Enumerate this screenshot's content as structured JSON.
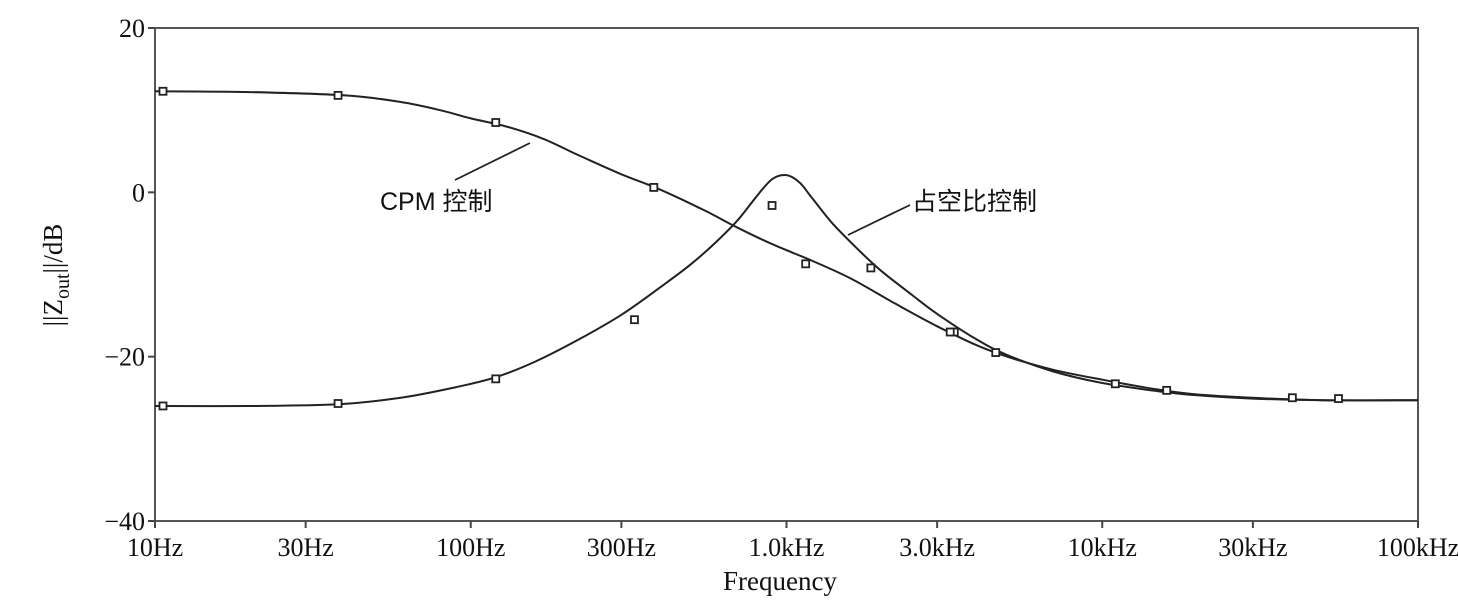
{
  "chart_data": {
    "type": "line",
    "title": "",
    "xlabel": "Frequency",
    "ylabel": "||Z_out||/dB",
    "ylabel_parts": {
      "pre": "||Z",
      "sub": "out",
      "post": "||/dB"
    },
    "x_scale": "log",
    "xlim": [
      10,
      100000
    ],
    "ylim": [
      -40,
      20
    ],
    "grid": false,
    "legend": "none",
    "x_ticks": [
      {
        "value": 10,
        "label": "10Hz"
      },
      {
        "value": 30,
        "label": "30Hz"
      },
      {
        "value": 100,
        "label": "100Hz"
      },
      {
        "value": 300,
        "label": "300Hz"
      },
      {
        "value": 1000,
        "label": "1.0kHz"
      },
      {
        "value": 3000,
        "label": "3.0kHz"
      },
      {
        "value": 10000,
        "label": "10kHz"
      },
      {
        "value": 30000,
        "label": "30kHz"
      },
      {
        "value": 100000,
        "label": "100kHz"
      }
    ],
    "y_ticks": [
      {
        "value": 20,
        "label": "20"
      },
      {
        "value": 0,
        "label": "0"
      },
      {
        "value": -20,
        "label": "−20"
      },
      {
        "value": -40,
        "label": "−40"
      }
    ],
    "series": [
      {
        "name": "CPM 控制",
        "line_color": "#222222",
        "marker": "square",
        "x": [
          10,
          20,
          40,
          60,
          80,
          100,
          130,
          170,
          220,
          300,
          400,
          550,
          700,
          900,
          1200,
          1600,
          2200,
          3000,
          4000,
          5000,
          7000,
          10000,
          15000,
          20000,
          30000,
          50000,
          100000
        ],
        "y": [
          12.3,
          12.2,
          11.8,
          11.0,
          10.0,
          9.0,
          8.0,
          6.5,
          4.5,
          2.2,
          0.3,
          -2.2,
          -4.3,
          -6.3,
          -8.3,
          -10.5,
          -13.5,
          -16.3,
          -18.6,
          -20.0,
          -21.6,
          -22.8,
          -24.0,
          -24.6,
          -25.0,
          -25.3,
          -25.3
        ],
        "marker_x": [
          10.6,
          38,
          120,
          380,
          1150,
          3400
        ],
        "marker_y": [
          12.3,
          11.8,
          8.5,
          0.6,
          -8.7,
          -17.0
        ]
      },
      {
        "name": "占空比控制",
        "line_color": "#222222",
        "marker": "square",
        "x": [
          10,
          20,
          38,
          60,
          90,
          120,
          160,
          220,
          300,
          400,
          500,
          600,
          700,
          800,
          900,
          1000,
          1100,
          1200,
          1400,
          1700,
          2000,
          2500,
          3000,
          4000,
          5000,
          7000,
          10000,
          15000,
          20000,
          30000,
          50000,
          100000
        ],
        "y": [
          -26.0,
          -26.0,
          -25.8,
          -25.0,
          -23.7,
          -22.5,
          -20.6,
          -17.9,
          -14.9,
          -11.5,
          -8.7,
          -6.0,
          -3.4,
          -0.6,
          1.6,
          2.1,
          1.2,
          -0.6,
          -3.8,
          -7.1,
          -9.6,
          -12.5,
          -14.8,
          -17.9,
          -19.8,
          -21.8,
          -23.2,
          -24.2,
          -24.7,
          -25.1,
          -25.3,
          -25.3
        ],
        "marker_x": [
          10.6,
          38,
          120,
          330,
          900,
          1850,
          3300,
          4600,
          11000,
          16000,
          40000,
          56000
        ],
        "marker_y": [
          -26.0,
          -25.7,
          -22.7,
          -15.5,
          -1.6,
          -9.2,
          -17.0,
          -19.5,
          -23.3,
          -24.1,
          -25.0,
          -25.1
        ]
      }
    ],
    "annotations": [
      {
        "text": "CPM 控制",
        "label_x": 380,
        "label_y": 210,
        "to_x": 530,
        "to_y": 143
      },
      {
        "text": "占空比控制",
        "label_x": 912,
        "label_y": 210,
        "to_x": 848,
        "to_y": 235
      }
    ]
  }
}
